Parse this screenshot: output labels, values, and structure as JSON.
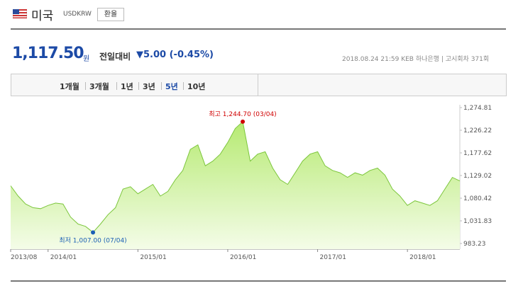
{
  "header": {
    "country": "미국",
    "code": "USDKRW",
    "button": "환율"
  },
  "price": {
    "value": "1,117.50",
    "unit": "원",
    "change_label": "전일대비",
    "direction": "▼",
    "change": "5.00",
    "change_pct": "(-0.45%)"
  },
  "info": {
    "datetime": "2018.08.24 21:59",
    "bank": "KEB 하나은행",
    "round": "고시회차 371회"
  },
  "tabs": [
    {
      "label": "1개월",
      "selected": false
    },
    {
      "label": "3개월",
      "selected": false
    },
    {
      "label": "1년",
      "selected": false
    },
    {
      "label": "3년",
      "selected": false
    },
    {
      "label": "5년",
      "selected": true
    },
    {
      "label": "10년",
      "selected": false
    }
  ],
  "chart_data": {
    "type": "area",
    "x": [
      "2013/08",
      "2013/09",
      "2013/10",
      "2013/11",
      "2013/12",
      "2014/01",
      "2014/02",
      "2014/03",
      "2014/04",
      "2014/05",
      "2014/06",
      "2014/07",
      "2014/08",
      "2014/09",
      "2014/10",
      "2014/11",
      "2014/12",
      "2015/01",
      "2015/02",
      "2015/03",
      "2015/04",
      "2015/05",
      "2015/06",
      "2015/07",
      "2015/08",
      "2015/09",
      "2015/10",
      "2015/11",
      "2015/12",
      "2016/01",
      "2016/02",
      "2016/03",
      "2016/04",
      "2016/05",
      "2016/06",
      "2016/07",
      "2016/08",
      "2016/09",
      "2016/10",
      "2016/11",
      "2016/12",
      "2017/01",
      "2017/02",
      "2017/03",
      "2017/04",
      "2017/05",
      "2017/06",
      "2017/07",
      "2017/08",
      "2017/09",
      "2017/10",
      "2017/11",
      "2017/12",
      "2018/01",
      "2018/02",
      "2018/03",
      "2018/04",
      "2018/05",
      "2018/06",
      "2018/07",
      "2018/08"
    ],
    "series": [
      {
        "name": "USDKRW",
        "color": "#7cc63c",
        "values": [
          1107,
          1085,
          1068,
          1060,
          1058,
          1065,
          1070,
          1068,
          1040,
          1025,
          1020,
          1007,
          1025,
          1045,
          1060,
          1100,
          1105,
          1090,
          1100,
          1110,
          1085,
          1095,
          1120,
          1140,
          1185,
          1195,
          1150,
          1160,
          1175,
          1200,
          1230,
          1244.7,
          1160,
          1175,
          1180,
          1145,
          1120,
          1110,
          1135,
          1160,
          1175,
          1180,
          1150,
          1140,
          1135,
          1125,
          1135,
          1130,
          1140,
          1145,
          1130,
          1100,
          1085,
          1065,
          1075,
          1070,
          1065,
          1075,
          1100,
          1125,
          1117.5
        ]
      }
    ],
    "ylim": [
      983.23,
      1274.81
    ],
    "yticks": [
      {
        "value": 1274.81,
        "label": "1,274.81"
      },
      {
        "value": 1226.22,
        "label": "1,226.22"
      },
      {
        "value": 1177.62,
        "label": "1,177.62"
      },
      {
        "value": 1129.02,
        "label": "1,129.02"
      },
      {
        "value": 1080.42,
        "label": "1,080.42"
      },
      {
        "value": 1031.83,
        "label": "1,031.83"
      },
      {
        "value": 983.23,
        "label": "983.23"
      }
    ],
    "xticks": [
      "2013/08",
      "2014/01",
      "2015/01",
      "2016/01",
      "2017/01",
      "2018/01"
    ],
    "annotations": [
      {
        "label": "최고 1,244.70 (03/04)",
        "index": 31,
        "color": "#d00000"
      },
      {
        "label": "최저 1,007.00 (07/04)",
        "index": 11,
        "color": "#1a5fb4"
      }
    ]
  }
}
